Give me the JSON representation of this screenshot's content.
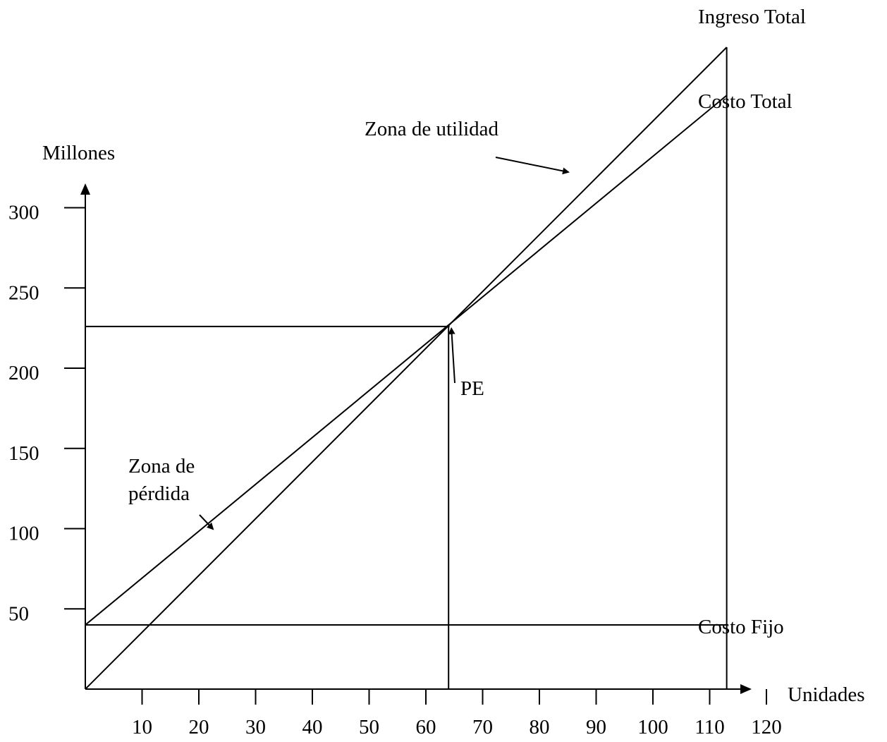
{
  "chart_data": {
    "type": "line",
    "ylabel": "Millones",
    "xlabel": "Unidades",
    "x_ticks": [
      10,
      20,
      30,
      40,
      50,
      60,
      70,
      80,
      90,
      100,
      110,
      120
    ],
    "y_ticks": [
      50,
      100,
      150,
      200,
      250,
      300
    ],
    "series": [
      {
        "name": "Ingreso Total",
        "x": [
          0,
          113
        ],
        "y": [
          0,
          400
        ]
      },
      {
        "name": "Costo Total",
        "x": [
          0,
          113
        ],
        "y": [
          40,
          370
        ]
      },
      {
        "name": "Costo Fijo",
        "x": [
          0,
          113
        ],
        "y": [
          40,
          40
        ]
      }
    ],
    "break_even": {
      "label": "PE",
      "x": 64,
      "y": 226
    },
    "annotations": {
      "profit_zone": "Zona de utilidad",
      "loss_zone_line1": "Zona de",
      "loss_zone_line2": "pérdida"
    }
  }
}
